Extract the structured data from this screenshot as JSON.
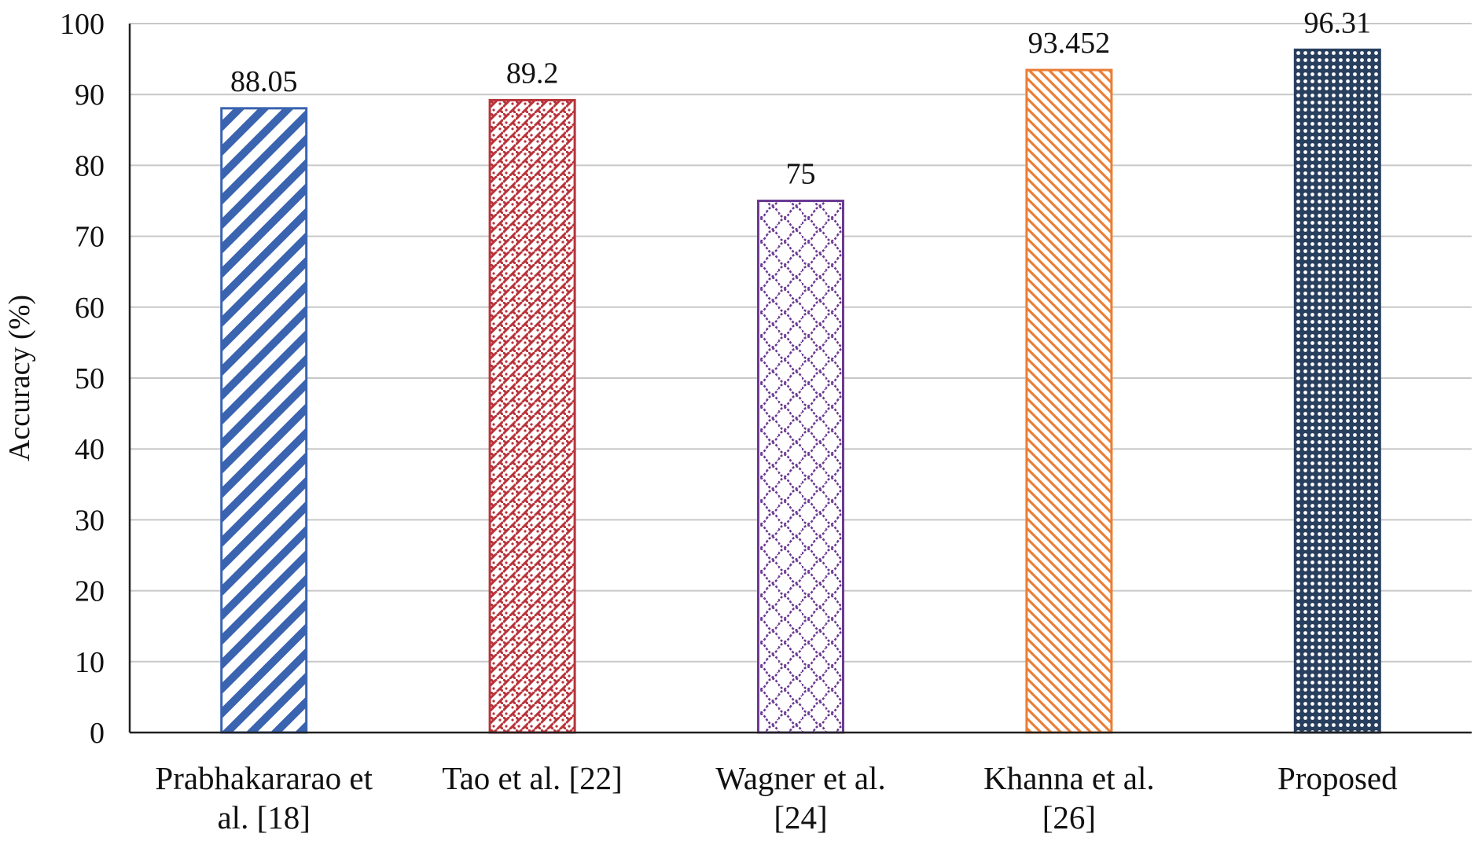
{
  "chart_data": {
    "type": "bar",
    "title": "",
    "xlabel": "",
    "ylabel": "Accuracy (%)",
    "ylim": [
      0,
      100
    ],
    "yticks": [
      0,
      10,
      20,
      30,
      40,
      50,
      60,
      70,
      80,
      90,
      100
    ],
    "grid": true,
    "categories": [
      [
        "Prabhakararao et",
        "al. [18]"
      ],
      [
        "Tao et al. [22]"
      ],
      [
        "Wagner et al.",
        "[24]"
      ],
      [
        "Khanna et al.",
        "[26]"
      ],
      [
        "Proposed"
      ]
    ],
    "values": [
      88.05,
      89.2,
      75,
      93.452,
      96.31
    ],
    "data_labels": [
      "88.05",
      "89.2",
      "75",
      "93.452",
      "96.31"
    ],
    "colors": [
      "#3a63b0",
      "#b8333a",
      "#6b3a92",
      "#ea7e35",
      "#283f5e"
    ],
    "patterns": [
      "diagonal-stripes",
      "red-weave",
      "scallop",
      "fine-diagonal",
      "grid-dots"
    ]
  }
}
